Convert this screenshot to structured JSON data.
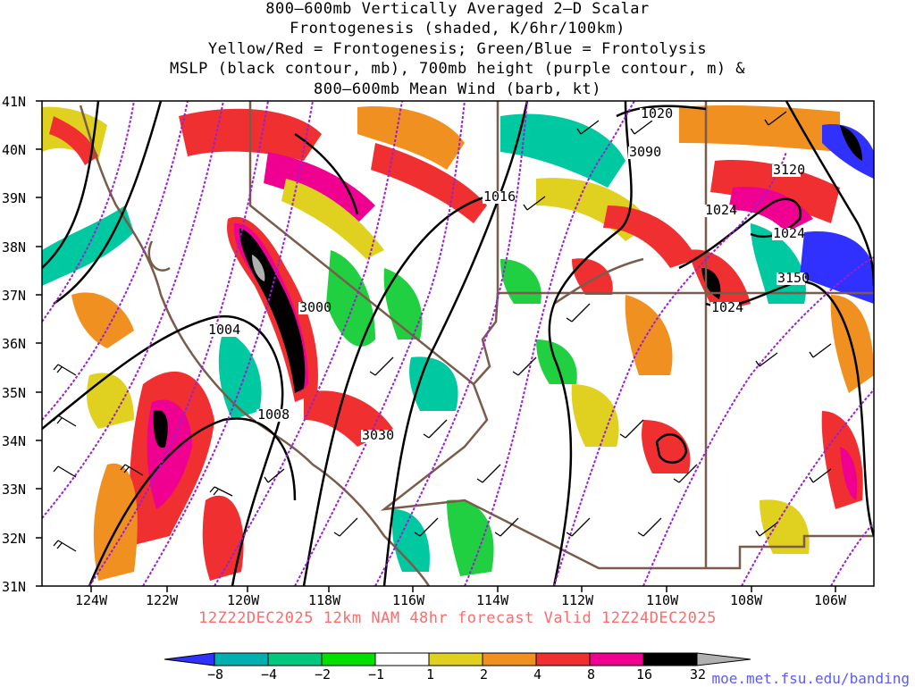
{
  "title": {
    "lines": [
      "800–600mb Vertically Averaged 2–D Scalar",
      "Frontogenesis (shaded, K/6hr/100km)",
      "Yellow/Red = Frontogenesis;  Green/Blue = Frontolysis",
      "MSLP (black contour, mb), 700mb height (purple contour, m) &",
      "800–600mb Mean Wind (barb, kt)"
    ]
  },
  "map": {
    "lat_labels": [
      "41N",
      "40N",
      "39N",
      "38N",
      "37N",
      "36N",
      "35N",
      "34N",
      "33N",
      "32N",
      "31N"
    ],
    "lon_labels": [
      "124W",
      "122W",
      "120W",
      "118W",
      "116W",
      "114W",
      "112W",
      "110W",
      "108W",
      "106W"
    ],
    "mslp_labels": [
      "1020",
      "1016",
      "1024",
      "1024",
      "1024",
      "1004",
      "1008"
    ],
    "height_labels": [
      "3090",
      "3120",
      "3150",
      "3000",
      "3030"
    ],
    "colors": {
      "mslp_contour": "#000000",
      "height_contour": "#9b1fd1",
      "borders": "#7a5c4a"
    }
  },
  "valid_line": "12Z22DEC2025  12km NAM 48hr forecast Valid 12Z24DEC2025",
  "colorbar": {
    "labels": [
      "−8",
      "−4",
      "−2",
      "−1",
      "1",
      "2",
      "4",
      "8",
      "16",
      "32"
    ],
    "colors": [
      "#3030ff",
      "#00b0b0",
      "#00c880",
      "#20d040",
      "#00e000",
      "#ffffff",
      "#e0d020",
      "#f09020",
      "#f03030",
      "#f00090",
      "#000000",
      "#b0b0b0"
    ]
  },
  "credit": "moe.met.fsu.edu/banding"
}
